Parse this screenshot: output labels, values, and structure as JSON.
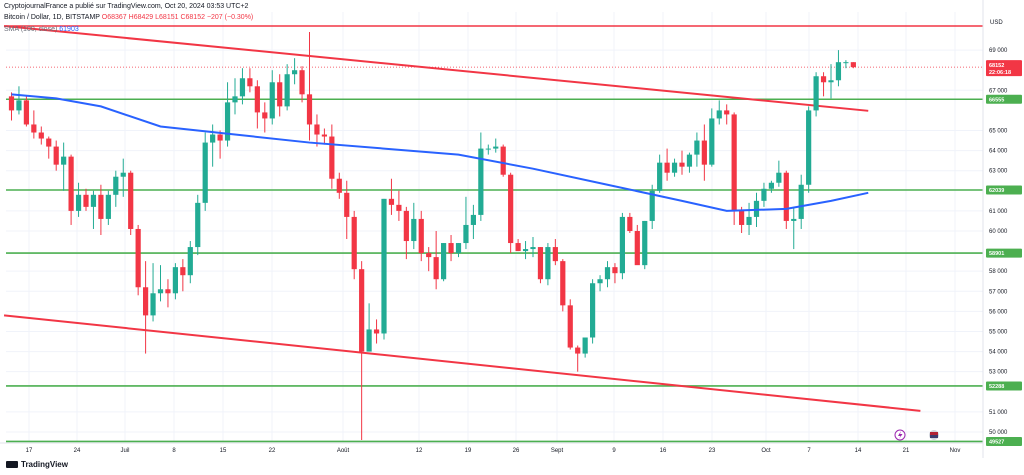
{
  "header": {
    "publisher": "CryptojournalFrance a publié sur TradingView.com, Oct 20, 2024 03:53 UTC+2",
    "symbol": "Bitcoin / Dollar, 1D, BITSTAMP",
    "open": "O68367",
    "high": "H68429",
    "low": "L68151",
    "close": "C68152",
    "change": "−207 (−0.30%)",
    "sma_label": "SMA (100, close)",
    "sma_value": "61903"
  },
  "footer": {
    "brand": "TradingView"
  },
  "currency": "USD",
  "colors": {
    "up": "#22ab94",
    "down": "#f23645",
    "sma": "#2962ff",
    "support": "#4caf50",
    "channel": "#f23645",
    "grid": "#f0f3fa"
  },
  "price_badges": {
    "last_price": "68152",
    "countdown": "22:06:18"
  },
  "chart_data": {
    "type": "candlestick",
    "ylim": [
      49500,
      70200
    ],
    "yticks": [
      50000,
      51000,
      53000,
      54000,
      55000,
      56000,
      57000,
      58000,
      60000,
      61000,
      63000,
      64000,
      65000,
      67000,
      69000
    ],
    "xlabels": [
      "17",
      "24",
      "Juil",
      "8",
      "15",
      "22",
      "Août",
      "12",
      "19",
      "26",
      "Sept",
      "9",
      "16",
      "23",
      "Oct",
      "7",
      "14",
      "21",
      "Nov"
    ],
    "x_start": "2024-06-11",
    "x_end": "2024-11-01",
    "series": [
      {
        "name": "Bitcoin / Dollar",
        "ohlc": [
          [
            66700,
            66900,
            65500,
            66000
          ],
          [
            66000,
            67200,
            65800,
            66500
          ],
          [
            66500,
            66700,
            65200,
            65300
          ],
          [
            65300,
            66000,
            64600,
            64900
          ],
          [
            64900,
            65200,
            64300,
            64600
          ],
          [
            64600,
            64700,
            63600,
            64200
          ],
          [
            64200,
            64500,
            63000,
            63300
          ],
          [
            63300,
            64400,
            62000,
            63700
          ],
          [
            63700,
            63800,
            60300,
            61000
          ],
          [
            61000,
            62400,
            60700,
            61800
          ],
          [
            61800,
            62100,
            61000,
            61200
          ],
          [
            61200,
            62000,
            60100,
            61800
          ],
          [
            61800,
            62300,
            59800,
            60600
          ],
          [
            60600,
            62000,
            60300,
            61800
          ],
          [
            61800,
            63000,
            61200,
            62700
          ],
          [
            62700,
            63600,
            61700,
            62900
          ],
          [
            62900,
            63000,
            59800,
            60100
          ],
          [
            60100,
            60300,
            56800,
            57200
          ],
          [
            57200,
            58500,
            53900,
            55800
          ],
          [
            55800,
            58400,
            55500,
            56900
          ],
          [
            56900,
            58300,
            56500,
            57100
          ],
          [
            57100,
            57600,
            56200,
            56900
          ],
          [
            56900,
            58400,
            56600,
            58200
          ],
          [
            58200,
            58600,
            57000,
            57800
          ],
          [
            57800,
            59500,
            57400,
            59200
          ],
          [
            59200,
            61800,
            58800,
            61400
          ],
          [
            61400,
            64900,
            61000,
            64400
          ],
          [
            64400,
            65300,
            63200,
            64800
          ],
          [
            64800,
            65000,
            63600,
            64500
          ],
          [
            64500,
            67400,
            64200,
            66400
          ],
          [
            66400,
            67600,
            65800,
            66700
          ],
          [
            66700,
            68100,
            66300,
            67600
          ],
          [
            67600,
            68100,
            66900,
            67200
          ],
          [
            67200,
            67500,
            65100,
            65900
          ],
          [
            65900,
            66400,
            64900,
            65600
          ],
          [
            65600,
            68000,
            65300,
            67400
          ],
          [
            67400,
            67800,
            65700,
            66200
          ],
          [
            66200,
            68300,
            66000,
            67800
          ],
          [
            67800,
            68600,
            67300,
            68000
          ],
          [
            68000,
            68200,
            66400,
            66800
          ],
          [
            66800,
            69900,
            64500,
            65300
          ],
          [
            65300,
            65800,
            64200,
            64800
          ],
          [
            64800,
            65100,
            64300,
            64700
          ],
          [
            64700,
            65300,
            62100,
            62600
          ],
          [
            62600,
            62900,
            61600,
            61900
          ],
          [
            61900,
            62500,
            59600,
            60700
          ],
          [
            60700,
            61000,
            57600,
            58100
          ],
          [
            58100,
            58500,
            49600,
            54000
          ],
          [
            54000,
            56400,
            54000,
            55100
          ],
          [
            55100,
            55600,
            54400,
            54900
          ],
          [
            54900,
            61600,
            54600,
            61600
          ],
          [
            61600,
            62600,
            60800,
            61300
          ],
          [
            61300,
            62000,
            60500,
            61000
          ],
          [
            61000,
            61200,
            58600,
            59500
          ],
          [
            59500,
            61400,
            59100,
            60600
          ],
          [
            60600,
            61000,
            58500,
            58900
          ],
          [
            58900,
            59200,
            58000,
            58700
          ],
          [
            58700,
            60000,
            57100,
            57600
          ],
          [
            57600,
            59400,
            57500,
            59400
          ],
          [
            59400,
            59800,
            58500,
            58900
          ],
          [
            58900,
            59400,
            58700,
            59400
          ],
          [
            59400,
            61700,
            59100,
            60300
          ],
          [
            60300,
            61300,
            59600,
            60800
          ],
          [
            60800,
            64900,
            60500,
            64100
          ],
          [
            64100,
            64300,
            63800,
            64100
          ],
          [
            64100,
            64600,
            63900,
            64200
          ],
          [
            64200,
            64300,
            62700,
            62800
          ],
          [
            62800,
            62900,
            58900,
            59400
          ],
          [
            59400,
            59600,
            59000,
            59000
          ],
          [
            59000,
            59500,
            58600,
            59100
          ],
          [
            59100,
            59700,
            58700,
            59200
          ],
          [
            59200,
            59200,
            57400,
            57600
          ],
          [
            57600,
            59400,
            57300,
            59200
          ],
          [
            59200,
            59600,
            58300,
            58500
          ],
          [
            58500,
            58600,
            56000,
            56300
          ],
          [
            56300,
            56600,
            54100,
            54200
          ],
          [
            54200,
            54300,
            53000,
            53900
          ],
          [
            53900,
            54500,
            53700,
            54700
          ],
          [
            54700,
            57600,
            54400,
            57400
          ],
          [
            57400,
            57800,
            57000,
            57600
          ],
          [
            57600,
            58500,
            57200,
            58200
          ],
          [
            58200,
            58400,
            57400,
            57900
          ],
          [
            57900,
            60900,
            57600,
            60700
          ],
          [
            60700,
            60900,
            59900,
            60000
          ],
          [
            60000,
            60300,
            58400,
            58300
          ],
          [
            58300,
            60500,
            58100,
            60500
          ],
          [
            60500,
            62300,
            60100,
            62000
          ],
          [
            62000,
            63800,
            61900,
            63400
          ],
          [
            63400,
            64100,
            62500,
            62900
          ],
          [
            62900,
            63600,
            62700,
            63400
          ],
          [
            63400,
            64000,
            62800,
            63200
          ],
          [
            63200,
            63900,
            62900,
            63800
          ],
          [
            63800,
            64900,
            63200,
            64500
          ],
          [
            64500,
            65300,
            62500,
            63300
          ],
          [
            63300,
            66100,
            63200,
            65600
          ],
          [
            65600,
            66500,
            65300,
            66000
          ],
          [
            66000,
            66300,
            65300,
            65800
          ],
          [
            65800,
            65900,
            60300,
            61000
          ],
          [
            61000,
            61200,
            59900,
            60300
          ],
          [
            60300,
            61400,
            59800,
            60700
          ],
          [
            60700,
            61900,
            60200,
            61500
          ],
          [
            61500,
            62400,
            61200,
            62100
          ],
          [
            62100,
            62500,
            61900,
            62400
          ],
          [
            62400,
            63500,
            62200,
            62900
          ],
          [
            62900,
            63000,
            60100,
            60500
          ],
          [
            60500,
            61200,
            59100,
            60600
          ],
          [
            60600,
            62800,
            60100,
            62300
          ],
          [
            62300,
            66200,
            61900,
            66000
          ],
          [
            66000,
            67900,
            65700,
            67700
          ],
          [
            67700,
            67900,
            66700,
            67400
          ],
          [
            67400,
            68300,
            66600,
            67500
          ],
          [
            67500,
            69000,
            67200,
            68400
          ],
          [
            68400,
            68500,
            68100,
            68400
          ],
          [
            68400,
            68400,
            68100,
            68152
          ]
        ]
      },
      {
        "name": "SMA (100, close)",
        "points": [
          [
            0,
            66800
          ],
          [
            6,
            66600
          ],
          [
            12,
            66200
          ],
          [
            20,
            65200
          ],
          [
            30,
            64800
          ],
          [
            40,
            64400
          ],
          [
            50,
            64100
          ],
          [
            60,
            63800
          ],
          [
            70,
            63100
          ],
          [
            80,
            62300
          ],
          [
            90,
            61500
          ],
          [
            96,
            61000
          ],
          [
            104,
            61100
          ],
          [
            110,
            61500
          ],
          [
            115,
            61900
          ]
        ]
      }
    ],
    "levels": [
      {
        "name": "resistance",
        "price": 70200,
        "badge": null
      },
      {
        "name": "support-66555",
        "price": 66555,
        "badge": "66555"
      },
      {
        "name": "support-62039",
        "price": 62039,
        "badge": "62039"
      },
      {
        "name": "support-58901",
        "price": 58901,
        "badge": "58901"
      },
      {
        "name": "support-52288",
        "price": 52288,
        "badge": "52288"
      },
      {
        "name": "support-49527",
        "price": 49527,
        "badge": "49527"
      }
    ],
    "trendlines": [
      {
        "name": "channel-upper",
        "from": [
          -1,
          70200
        ],
        "to": [
          115,
          65980
        ]
      },
      {
        "name": "channel-lower",
        "from": [
          -1,
          55800
        ],
        "to": [
          122,
          51050
        ]
      }
    ]
  }
}
